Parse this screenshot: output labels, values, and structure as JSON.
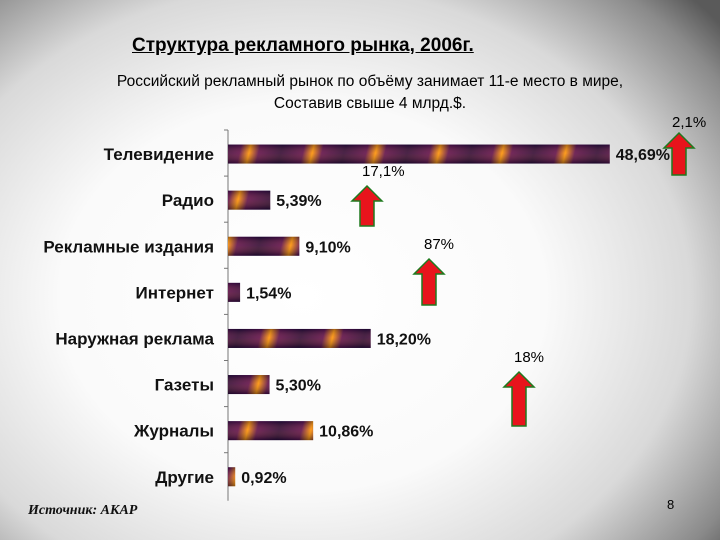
{
  "title": "Структура рекламного рынка, 2006г.",
  "subtitle_line1": "Российский рекламный рынок по объёму занимает 11-е место в мире,",
  "subtitle_line2": "Составив свыше 4 млрд.$.",
  "source": "Источник: АКАР",
  "page_number": "8",
  "colors": {
    "arrow_fill": "#e8141c",
    "arrow_stroke": "#1f7a1f",
    "bar_dark": "#2a0a4a",
    "bar_glow": "#ff9a1a"
  },
  "growth_annotations": [
    {
      "label": "2,1%",
      "category": "Телевидение"
    },
    {
      "label": "17,1%",
      "category": "Радио"
    },
    {
      "label": "87%",
      "category": "Интернет"
    },
    {
      "label": "18%",
      "category": "Журналы"
    }
  ],
  "chart_data": {
    "type": "bar",
    "orientation": "horizontal",
    "categories": [
      "Телевидение",
      "Радио",
      "Рекламные издания",
      "Интернет",
      "Наружная реклама",
      "Газеты",
      "Журналы",
      "Другие"
    ],
    "values": [
      48.69,
      5.39,
      9.1,
      1.54,
      18.2,
      5.3,
      10.86,
      0.92
    ],
    "value_labels": [
      "48,69%",
      "5,39%",
      "9,10%",
      "1,54%",
      "18,20%",
      "5,30%",
      "10,86%",
      "0,92%"
    ],
    "xlim": [
      0,
      50
    ],
    "title": "",
    "xlabel": "",
    "ylabel": "",
    "grid": false
  }
}
